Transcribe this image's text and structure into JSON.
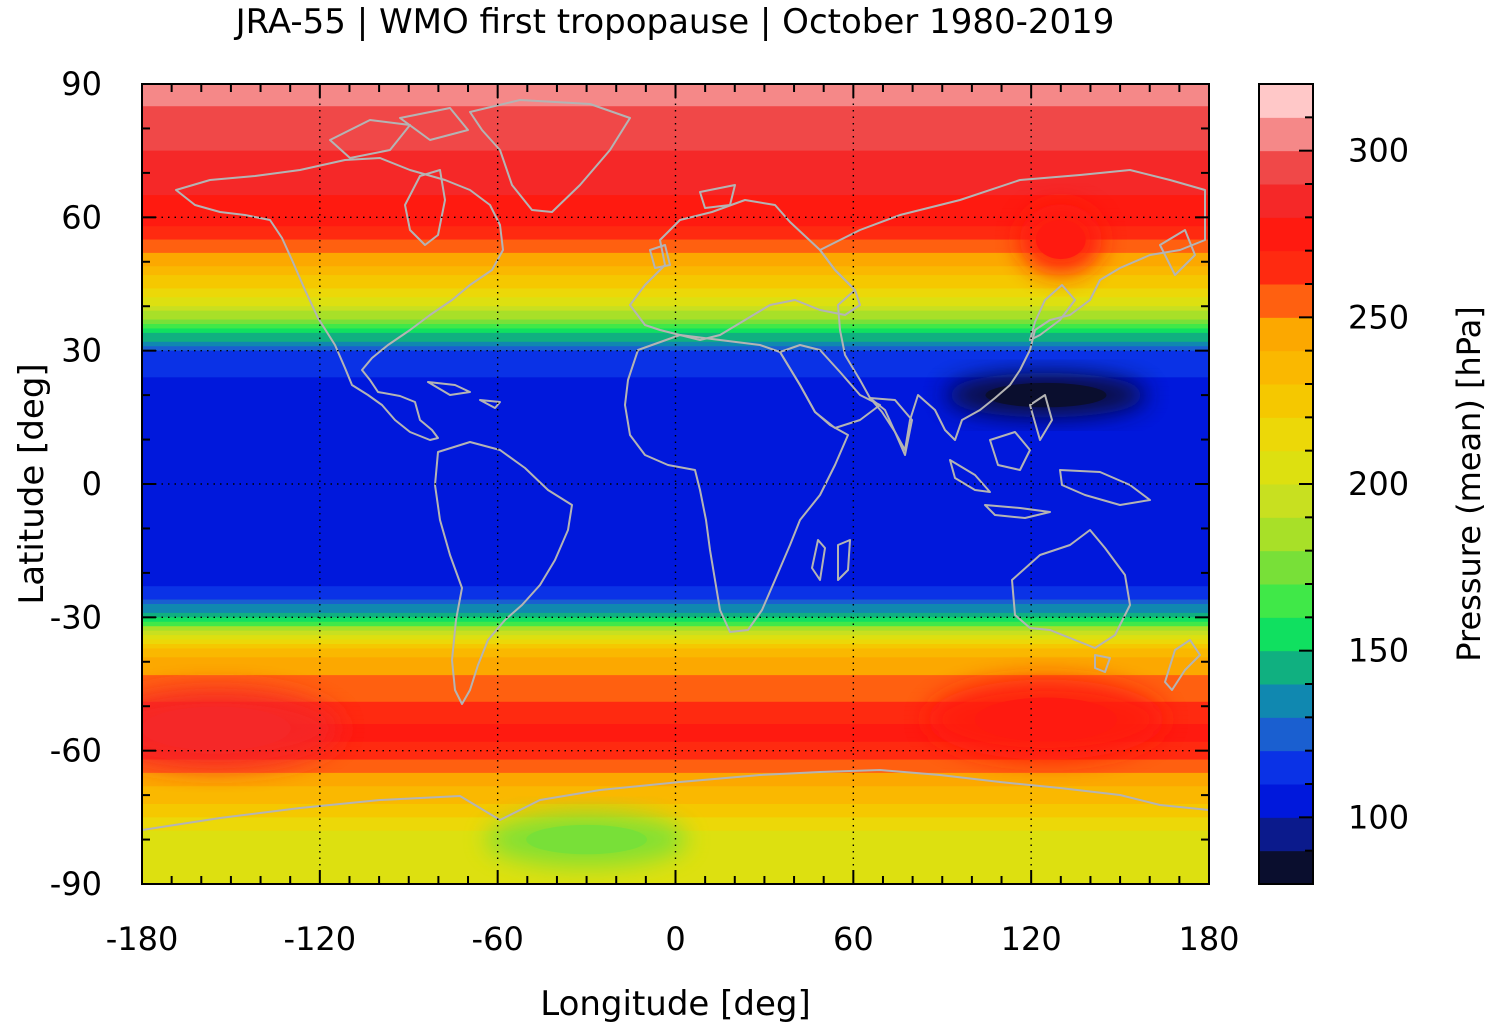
{
  "chart_data": {
    "type": "heatmap",
    "title": "JRA-55 | WMO first tropopause | October 1980-2019",
    "xlabel": "Longitude [deg]",
    "ylabel": "Latitude [deg]",
    "xlim": [
      -180,
      180
    ],
    "ylim": [
      -90,
      90
    ],
    "x_ticks": [
      "-180",
      "-120",
      "-60",
      "0",
      "60",
      "120",
      "180"
    ],
    "y_ticks": [
      "90",
      "60",
      "30",
      "0",
      "-30",
      "-60",
      "-90"
    ],
    "grid": "dotted",
    "colorbar": {
      "label": "Pressure (mean) [hPa]",
      "range": [
        80,
        320
      ],
      "ticks": [
        "100",
        "150",
        "200",
        "250",
        "300"
      ],
      "levels": [
        80,
        90,
        100,
        110,
        120,
        130,
        140,
        150,
        160,
        170,
        180,
        190,
        200,
        210,
        220,
        230,
        240,
        250,
        260,
        270,
        280,
        290,
        300,
        310,
        320
      ],
      "colors": [
        "#0a0e2e",
        "#0b1a8c",
        "#0018dc",
        "#0a32e6",
        "#1a5fd0",
        "#1088b0",
        "#10b080",
        "#10e060",
        "#40e848",
        "#78e038",
        "#a8e028",
        "#c8e020",
        "#dde010",
        "#ecd808",
        "#f5c800",
        "#fab800",
        "#fca800",
        "#ff6010",
        "#ff2a10",
        "#ff1a10",
        "#f52828",
        "#f04848",
        "#f58888",
        "#ffc8c8"
      ]
    },
    "zonal_profile": {
      "lat": [
        90,
        80,
        70,
        60,
        50,
        40,
        35,
        30,
        20,
        0,
        -20,
        -25,
        -30,
        -35,
        -40,
        -50,
        -55,
        -60,
        -70,
        -80,
        -90
      ],
      "pressure_hPa": [
        305,
        295,
        285,
        275,
        245,
        200,
        160,
        120,
        102,
        100,
        102,
        115,
        150,
        215,
        245,
        262,
        272,
        268,
        235,
        205,
        205
      ]
    },
    "features": [
      {
        "lon": 125,
        "lat": 20,
        "pressure_hPa": 85
      },
      {
        "lon": -155,
        "lat": -55,
        "pressure_hPa": 285
      },
      {
        "lon": 125,
        "lat": -53,
        "pressure_hPa": 278
      },
      {
        "lon": -30,
        "lat": -80,
        "pressure_hPa": 175
      },
      {
        "lon": 130,
        "lat": 55,
        "pressure_hPa": 270
      }
    ]
  }
}
